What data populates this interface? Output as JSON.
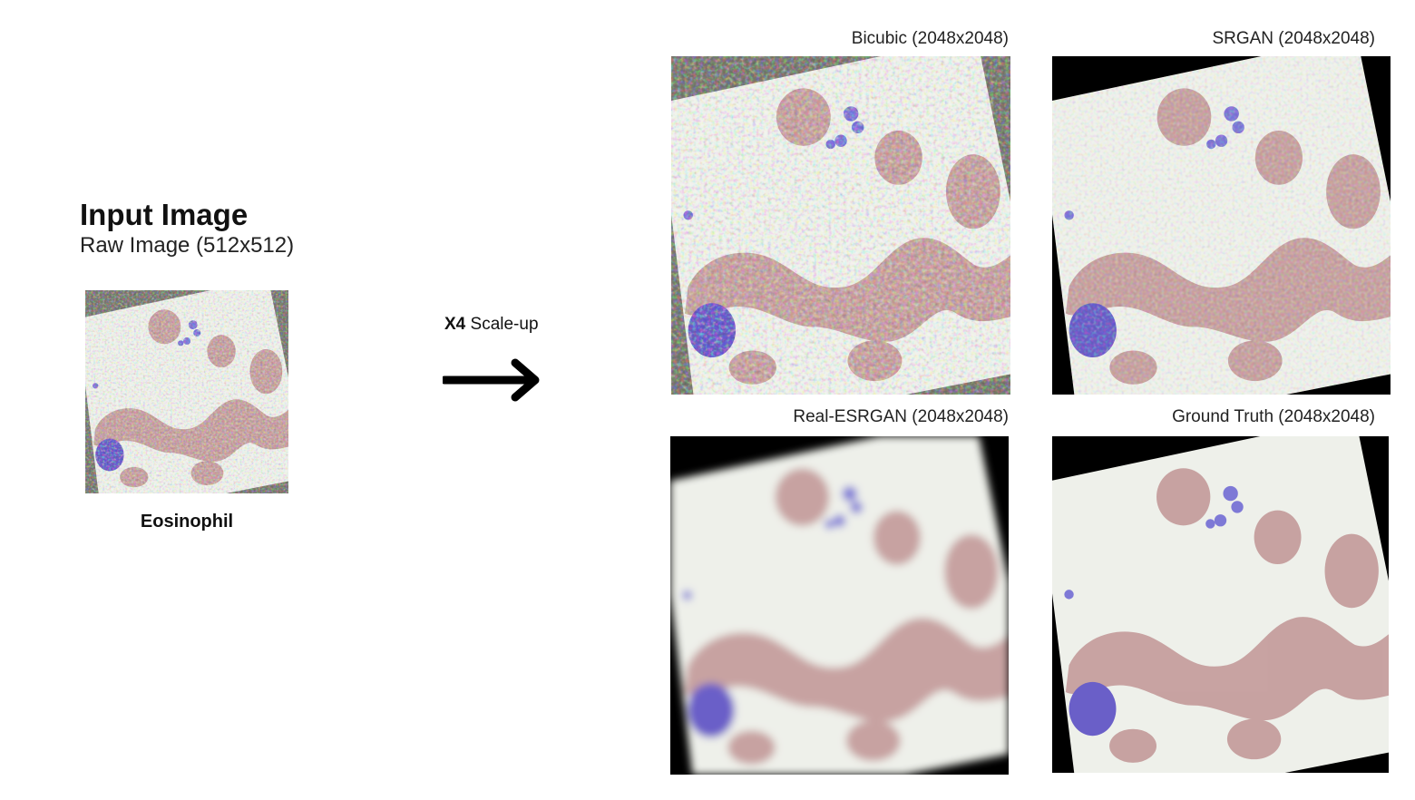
{
  "input": {
    "title": "Input Image",
    "subtitle": "Raw Image (512x512)",
    "cell_label": "Eosinophil"
  },
  "scale": {
    "factor": "X4",
    "text": "Scale-up"
  },
  "panels": [
    {
      "label": "Bicubic (2048x2048)"
    },
    {
      "label": "SRGAN (2048x2048)"
    },
    {
      "label": "Real-ESRGAN (2048x2048)"
    },
    {
      "label": "Ground Truth (2048x2048)"
    }
  ],
  "colors": {
    "slide_bg": "#eef0ea",
    "rbc": "#c39a9a",
    "eosinophil": "#6a5fc8",
    "platelet": "#7e79d6",
    "border_black": "#000000",
    "noise_gray": "#7b7b72"
  }
}
